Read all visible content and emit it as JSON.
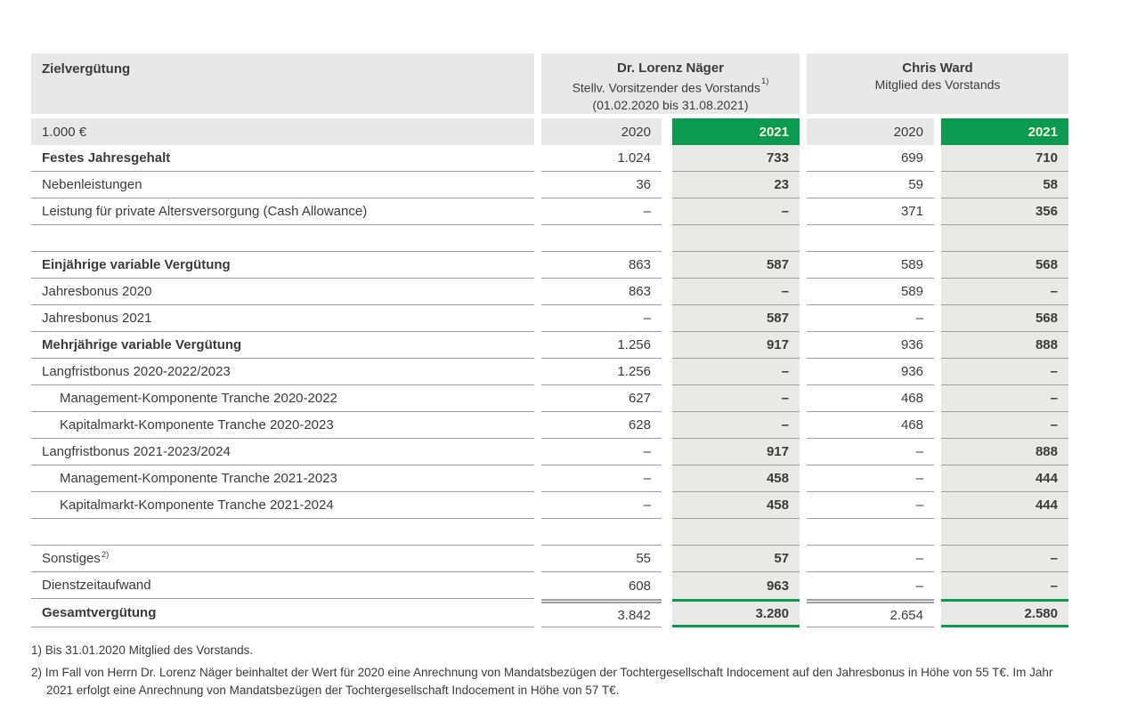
{
  "table": {
    "title": "Zielvergütung",
    "unit_label": "1.000 €",
    "persons": [
      {
        "name": "Dr. Lorenz Näger",
        "role": "Stellv. Vorsitzender des Vorstands",
        "role_footnote_ref": "1)",
        "period": "(01.02.2020 bis 31.08.2021)"
      },
      {
        "name": "Chris Ward",
        "role": "Mitglied des Vorstands"
      }
    ],
    "year_headers": [
      "2020",
      "2021",
      "2020",
      "2021"
    ],
    "rows": [
      {
        "label": "Festes Jahresgehalt",
        "values": [
          "1.024",
          "733",
          "699",
          "710"
        ]
      },
      {
        "label": "Nebenleistungen",
        "values": [
          "36",
          "23",
          "59",
          "58"
        ]
      },
      {
        "label": "Leistung für private Altersversorgung (Cash Allowance)",
        "values": [
          "–",
          "–",
          "371",
          "356"
        ]
      },
      {
        "label": "",
        "values": [
          "",
          "",
          "",
          ""
        ]
      },
      {
        "label": "Einjährige variable Vergütung",
        "values": [
          "863",
          "587",
          "589",
          "568"
        ]
      },
      {
        "label": "Jahresbonus 2020",
        "values": [
          "863",
          "–",
          "589",
          "–"
        ]
      },
      {
        "label": "Jahresbonus 2021",
        "values": [
          "–",
          "587",
          "–",
          "568"
        ]
      },
      {
        "label": "Mehrjährige variable Vergütung",
        "values": [
          "1.256",
          "917",
          "936",
          "888"
        ]
      },
      {
        "label": "Langfristbonus 2020-2022/2023",
        "values": [
          "1.256",
          "–",
          "936",
          "–"
        ]
      },
      {
        "label": "Management-Komponente Tranche 2020-2022",
        "values": [
          "627",
          "–",
          "468",
          "–"
        ]
      },
      {
        "label": "Kapitalmarkt-Komponente Tranche 2020-2023",
        "values": [
          "628",
          "–",
          "468",
          "–"
        ]
      },
      {
        "label": "Langfristbonus 2021-2023/2024",
        "values": [
          "–",
          "917",
          "–",
          "888"
        ]
      },
      {
        "label": "Management-Komponente Tranche 2021-2023",
        "values": [
          "–",
          "458",
          "–",
          "444"
        ]
      },
      {
        "label": "Kapitalmarkt-Komponente Tranche 2021-2024",
        "values": [
          "–",
          "458",
          "–",
          "444"
        ]
      },
      {
        "label": "",
        "values": [
          "",
          "",
          "",
          ""
        ]
      },
      {
        "label": "Sonstiges",
        "footnote_ref": "2)",
        "values": [
          "55",
          "57",
          "–",
          "–"
        ]
      },
      {
        "label": "Dienstzeitaufwand",
        "values": [
          "608",
          "963",
          "–",
          "–"
        ]
      },
      {
        "label": "Gesamtvergütung",
        "values": [
          "3.842",
          "3.280",
          "2.654",
          "2.580"
        ]
      }
    ]
  },
  "footnotes": [
    "1) Bis 31.01.2020 Mitglied des Vorstands.",
    "2) Im Fall von Herrn Dr. Lorenz Näger beinhaltet der Wert für 2020 eine Anrechnung von Mandatsbezügen der Tochtergesellschaft Indocement auf den Jahresbonus in Höhe von 55 T€. Im Jahr 2021 erfolgt eine Anrechnung von Mandatsbezügen der Tochtergesellschaft Indocement in Höhe von 57 T€."
  ],
  "colors": {
    "accent_green": "#0a9b50",
    "header_gray": "#e8e8e8",
    "column_highlight": "#e9e9e8",
    "rule_gray": "#9f9f9e",
    "text": "#3b3b3a",
    "year_2021_text": "#f8f3de"
  }
}
